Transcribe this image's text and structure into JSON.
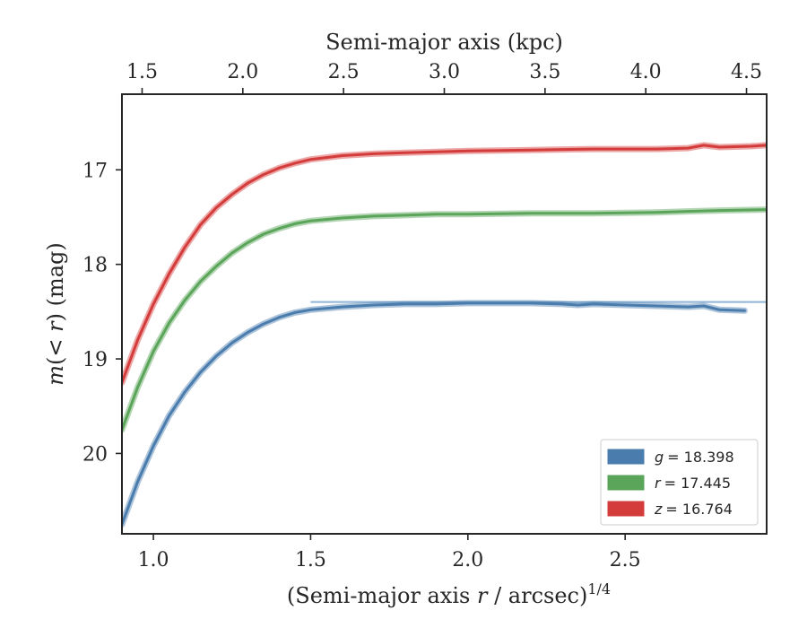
{
  "chart_data": {
    "type": "line",
    "xlabel": "(Semi-major axis r / arcsec)^1/4",
    "xlabel_parts": {
      "pre": "(Semi-major axis ",
      "var": "r",
      "post": " / arcsec)",
      "sup": "1/4"
    },
    "ylabel": "m(< r) (mag)",
    "ylabel_parts": {
      "var": "m",
      "paren_open": "(",
      "lt": "< ",
      "r": "r",
      "paren_close": ")",
      "unit": " (mag)"
    },
    "top_xlabel": "Semi-major axis (kpc)",
    "xlim": [
      0.9,
      2.95
    ],
    "ylim": [
      20.85,
      16.2
    ],
    "y_inverted": true,
    "x_ticks": [
      "1.0",
      "1.5",
      "2.0",
      "2.5"
    ],
    "x_tick_values": [
      1.0,
      1.5,
      2.0,
      2.5
    ],
    "y_ticks": [
      "17",
      "18",
      "19",
      "20"
    ],
    "y_tick_values": [
      17,
      18,
      19,
      20
    ],
    "top_ticks": [
      "1.5",
      "2.0",
      "2.5",
      "3.0",
      "3.5",
      "4.0",
      "4.5"
    ],
    "top_tick_values": [
      1.5,
      2.0,
      2.5,
      3.0,
      3.5,
      4.0,
      4.5
    ],
    "legend_placement": "lower-right",
    "series": [
      {
        "name": "g = 18.398",
        "legend_var": "g",
        "legend_value": "= 18.398",
        "color": "#4a7cad",
        "x": [
          0.9,
          0.95,
          1.0,
          1.05,
          1.1,
          1.15,
          1.2,
          1.25,
          1.3,
          1.35,
          1.4,
          1.45,
          1.5,
          1.6,
          1.7,
          1.8,
          1.9,
          2.0,
          2.1,
          2.2,
          2.3,
          2.35,
          2.4,
          2.5,
          2.6,
          2.7,
          2.75,
          2.8,
          2.88
        ],
        "y": [
          20.75,
          20.3,
          19.92,
          19.6,
          19.35,
          19.14,
          18.97,
          18.83,
          18.72,
          18.63,
          18.56,
          18.51,
          18.48,
          18.45,
          18.43,
          18.42,
          18.42,
          18.41,
          18.41,
          18.41,
          18.42,
          18.43,
          18.42,
          18.43,
          18.44,
          18.45,
          18.44,
          18.48,
          18.49
        ],
        "model_y": 18.398
      },
      {
        "name": "r = 17.445",
        "legend_var": "r",
        "legend_value": "= 17.445",
        "color": "#5aa55a",
        "x": [
          0.9,
          0.95,
          1.0,
          1.05,
          1.1,
          1.15,
          1.2,
          1.25,
          1.3,
          1.35,
          1.4,
          1.45,
          1.5,
          1.6,
          1.7,
          1.8,
          1.9,
          2.0,
          2.2,
          2.4,
          2.6,
          2.8,
          2.95
        ],
        "y": [
          19.75,
          19.3,
          18.92,
          18.62,
          18.38,
          18.18,
          18.02,
          17.88,
          17.77,
          17.68,
          17.62,
          17.57,
          17.54,
          17.51,
          17.49,
          17.48,
          17.47,
          17.47,
          17.46,
          17.46,
          17.45,
          17.43,
          17.42
        ]
      },
      {
        "name": "z = 16.764",
        "legend_var": "z",
        "legend_value": "= 16.764",
        "color": "#d43c3c",
        "x": [
          0.9,
          0.95,
          1.0,
          1.05,
          1.1,
          1.15,
          1.2,
          1.25,
          1.3,
          1.35,
          1.4,
          1.45,
          1.5,
          1.6,
          1.7,
          1.8,
          1.9,
          2.0,
          2.2,
          2.4,
          2.6,
          2.7,
          2.75,
          2.8,
          2.9,
          2.95
        ],
        "y": [
          19.25,
          18.8,
          18.42,
          18.1,
          17.82,
          17.58,
          17.4,
          17.26,
          17.14,
          17.05,
          16.98,
          16.93,
          16.89,
          16.85,
          16.83,
          16.82,
          16.81,
          16.8,
          16.79,
          16.78,
          16.78,
          16.77,
          16.74,
          16.76,
          16.75,
          16.74
        ]
      }
    ]
  }
}
